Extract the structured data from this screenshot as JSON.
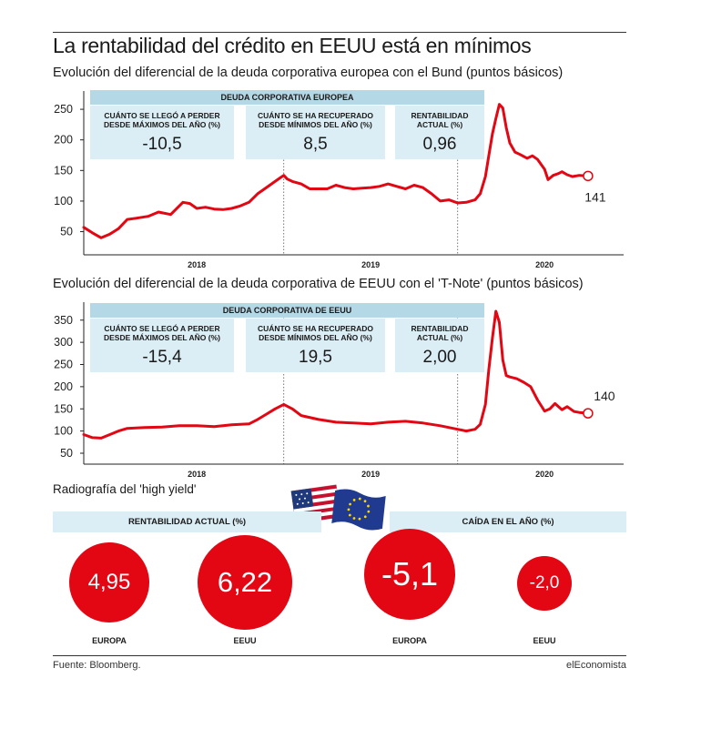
{
  "title": "La rentabilidad del crédito en EEUU está en mínimos",
  "chart_data": [
    {
      "type": "line",
      "title": "Evolución del diferencial de la deuda corporativa europea con el Bund (puntos básicos)",
      "ylim": [
        30,
        265
      ],
      "xlim": [
        2017.35,
        2020.35
      ],
      "yticks": [
        50,
        100,
        150,
        200,
        250
      ],
      "xticks": [
        {
          "label": "2018",
          "x": 2018.0
        },
        {
          "label": "2019",
          "x": 2019.0
        },
        {
          "label": "2020",
          "x": 2020.0
        }
      ],
      "year_dividers": [
        2018.5,
        2019.5
      ],
      "series": [
        {
          "name": "Diferencial deuda corporativa europea",
          "x": [
            2017.35,
            2017.4,
            2017.45,
            2017.5,
            2017.55,
            2017.6,
            2017.65,
            2017.72,
            2017.78,
            2017.85,
            2017.92,
            2017.96,
            2018.0,
            2018.05,
            2018.1,
            2018.15,
            2018.2,
            2018.25,
            2018.3,
            2018.35,
            2018.4,
            2018.45,
            2018.48,
            2018.5,
            2018.52,
            2018.55,
            2018.6,
            2018.65,
            2018.7,
            2018.75,
            2018.8,
            2018.85,
            2018.9,
            2018.95,
            2019.0,
            2019.05,
            2019.1,
            2019.15,
            2019.2,
            2019.25,
            2019.3,
            2019.35,
            2019.4,
            2019.45,
            2019.5,
            2019.55,
            2019.6,
            2019.63,
            2019.66,
            2019.68,
            2019.7,
            2019.72,
            2019.74,
            2019.76,
            2019.78,
            2019.8,
            2019.83,
            2019.86,
            2019.9,
            2019.93,
            2019.96,
            2020.0,
            2020.02,
            2020.05,
            2020.08,
            2020.1,
            2020.13,
            2020.16,
            2020.2,
            2020.25
          ],
          "values": [
            57,
            48,
            40,
            46,
            55,
            70,
            72,
            75,
            82,
            78,
            98,
            96,
            88,
            90,
            87,
            86,
            88,
            92,
            98,
            112,
            122,
            132,
            138,
            142,
            136,
            132,
            128,
            120,
            120,
            120,
            126,
            122,
            120,
            121,
            122,
            124,
            128,
            124,
            120,
            126,
            122,
            112,
            100,
            102,
            97,
            98,
            102,
            112,
            140,
            175,
            210,
            235,
            258,
            252,
            220,
            195,
            180,
            176,
            170,
            174,
            168,
            152,
            135,
            142,
            145,
            148,
            143,
            140,
            142,
            141
          ]
        }
      ],
      "end_label": "141",
      "stats": {
        "header": "DEUDA CORPORATIVA EUROPEA",
        "items": [
          {
            "label": "CUÁNTO SE LLEGÓ A PERDER\nDESDE MÁXIMOS DEL AÑO (%)",
            "value": "-10,5"
          },
          {
            "label": "CUÁNTO SE HA RECUPERADO\nDESDE MÍNIMOS DEL AÑO (%)",
            "value": "8,5"
          },
          {
            "label": "RENTABILIDAD\nACTUAL (%)",
            "value": "0,96"
          }
        ]
      }
    },
    {
      "type": "line",
      "title": "Evolución del diferencial de la deuda corporativa de EEUU con el 'T-Note' (puntos básicos)",
      "ylim": [
        50,
        370
      ],
      "xlim": [
        2017.35,
        2020.35
      ],
      "yticks": [
        50,
        100,
        150,
        200,
        250,
        300,
        350
      ],
      "xticks": [
        {
          "label": "2018",
          "x": 2018.0
        },
        {
          "label": "2019",
          "x": 2019.0
        },
        {
          "label": "2020",
          "x": 2020.0
        }
      ],
      "year_dividers": [
        2018.5,
        2019.5
      ],
      "series": [
        {
          "name": "Diferencial deuda corporativa EEUU",
          "x": [
            2017.35,
            2017.4,
            2017.45,
            2017.5,
            2017.55,
            2017.6,
            2017.7,
            2017.8,
            2017.9,
            2018.0,
            2018.1,
            2018.2,
            2018.3,
            2018.35,
            2018.4,
            2018.45,
            2018.5,
            2018.55,
            2018.6,
            2018.7,
            2018.8,
            2018.9,
            2019.0,
            2019.1,
            2019.2,
            2019.3,
            2019.4,
            2019.5,
            2019.55,
            2019.6,
            2019.63,
            2019.66,
            2019.68,
            2019.7,
            2019.72,
            2019.74,
            2019.76,
            2019.78,
            2019.8,
            2019.84,
            2019.88,
            2019.92,
            2019.96,
            2020.0,
            2020.03,
            2020.06,
            2020.1,
            2020.13,
            2020.17,
            2020.2,
            2020.25
          ],
          "values": [
            92,
            85,
            84,
            92,
            100,
            106,
            108,
            109,
            112,
            112,
            110,
            114,
            116,
            126,
            138,
            150,
            160,
            150,
            135,
            126,
            120,
            118,
            116,
            120,
            122,
            118,
            112,
            104,
            100,
            104,
            115,
            160,
            240,
            310,
            370,
            345,
            260,
            225,
            222,
            218,
            210,
            200,
            170,
            145,
            150,
            162,
            148,
            155,
            144,
            142,
            140
          ]
        }
      ],
      "end_label": "140",
      "stats": {
        "header": "DEUDA CORPORATIVA DE EEUU",
        "items": [
          {
            "label": "CUÁNTO SE LLEGÓ A PERDER\nDESDE MÁXIMOS DEL AÑO (%)",
            "value": "-15,4"
          },
          {
            "label": "CUÁNTO SE HA RECUPERADO\nDESDE MÍNIMOS DEL AÑO (%)",
            "value": "19,5"
          },
          {
            "label": "RENTABILIDAD\nACTUAL (%)",
            "value": "2,00"
          }
        ]
      }
    }
  ],
  "high_yield": {
    "title": "Radiografía del 'high yield'",
    "rentabilidad_header": "RENTABILIDAD ACTUAL (%)",
    "caida_header": "CAÍDA EN EL AÑO (%)",
    "circles": [
      {
        "value": 4.95,
        "text": "4,95",
        "label": "EUROPA"
      },
      {
        "value": 6.22,
        "text": "6,22",
        "label": "EEUU"
      },
      {
        "value": -5.1,
        "text": "-5,1",
        "label": "EUROPA"
      },
      {
        "value": -2.0,
        "text": "-2,0",
        "label": "EEUU"
      }
    ],
    "flags": [
      "us-flag-icon",
      "eu-flag-icon"
    ]
  },
  "footer": {
    "source": "Fuente: Bloomberg.",
    "brand": "elEconomista"
  },
  "colors": {
    "line": "#e30613",
    "box_light": "#dbeef5",
    "box_dark": "#b5d8e6",
    "axis": "#222222"
  }
}
